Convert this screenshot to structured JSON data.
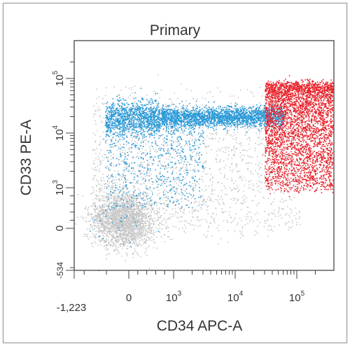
{
  "chart_data": {
    "type": "scatter",
    "title": "Primary",
    "xlabel": "CD34 APC-A",
    "ylabel": "CD33 PE-A",
    "x_scale": "biexponential",
    "y_scale": "biexponential",
    "xlim": [
      -1223,
      250000
    ],
    "ylim": [
      -534,
      250000
    ],
    "x_ticks": [
      {
        "label": "-1,223",
        "value": -1223
      },
      {
        "label": "0",
        "value": 0
      },
      {
        "label": "10",
        "sup": "3",
        "value": 1000
      },
      {
        "label": "10",
        "sup": "4",
        "value": 10000
      },
      {
        "label": "10",
        "sup": "5",
        "value": 100000
      }
    ],
    "y_ticks": [
      {
        "label": "-534",
        "value": -534
      },
      {
        "label": "0",
        "value": 0
      },
      {
        "label": "10",
        "sup": "3",
        "value": 1000
      },
      {
        "label": "10",
        "sup": "4",
        "value": 10000
      },
      {
        "label": "10",
        "sup": "5",
        "value": 100000
      }
    ],
    "grid": false,
    "legend": "none",
    "series": [
      {
        "color": "#c8c8c8",
        "clusters": [
          {
            "x_center": 0,
            "y_center": 0,
            "spread": "wide"
          },
          {
            "x_range": [
              0,
              30000
            ],
            "y_range": [
              300,
              20000
            ],
            "spread": "diffuse"
          }
        ]
      },
      {
        "color": "#2b9ad8",
        "clusters": [
          {
            "x_range": [
              -300,
              30000
            ],
            "y_center": 20000,
            "spread": "dense band"
          },
          {
            "x_range": [
              -300,
              2000
            ],
            "y_range": [
              2000,
              20000
            ],
            "spread": "sparse tail"
          }
        ]
      },
      {
        "color": "#e8242c",
        "clusters": [
          {
            "x_range": [
              30000,
              250000
            ],
            "y_range": [
              1000,
              50000
            ],
            "spread": "dense"
          }
        ]
      }
    ]
  }
}
